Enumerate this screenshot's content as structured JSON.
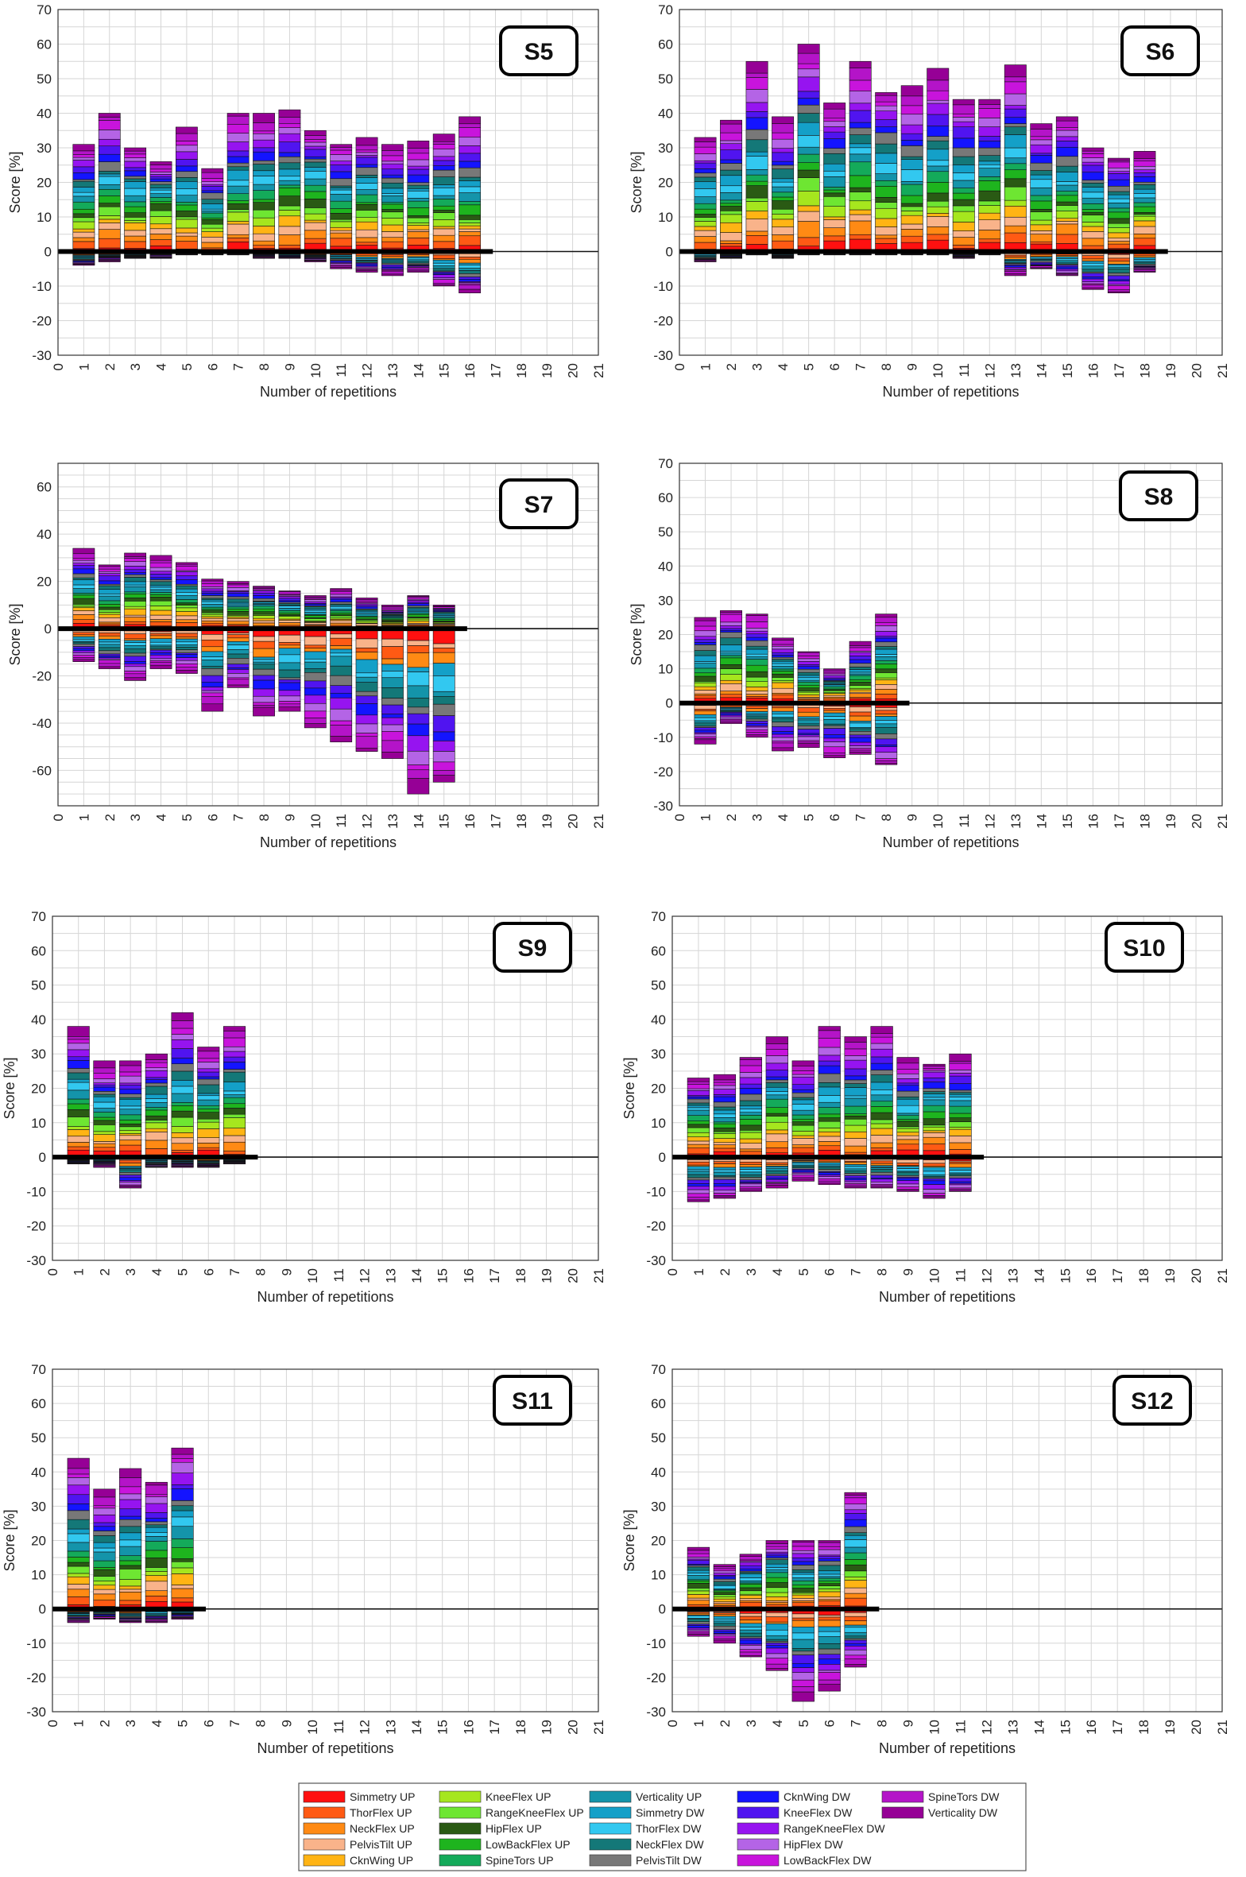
{
  "legend_labels": [
    "Simmetry UP",
    "ThorFlex UP",
    "NeckFlex UP",
    "PelvisTilt UP",
    "CknWing UP",
    "KneeFlex UP",
    "RangeKneeFlex UP",
    "HipFlex UP",
    "LowBackFlex UP",
    "SpineTors UP",
    "Verticality UP",
    "Simmetry DW",
    "ThorFlex DW",
    "NeckFlex DW",
    "PelvisTilt DW",
    "CknWing DW",
    "KneeFlex DW",
    "RangeKneeFlex DW",
    "HipFlex DW",
    "LowBackFlex DW",
    "SpineTors DW",
    "Verticality DW"
  ],
  "legend_colors": [
    "#ff1010",
    "#ff5a14",
    "#ff8a14",
    "#f9b38a",
    "#ffb414",
    "#a6e61e",
    "#6ee632",
    "#2a5a14",
    "#1eb41e",
    "#14aa5a",
    "#1494aa",
    "#14a0c8",
    "#32c8f0",
    "#147878",
    "#787878",
    "#1414ff",
    "#5014f0",
    "#9614f0",
    "#b464e6",
    "#c814dc",
    "#b414c8",
    "#960096"
  ],
  "chart_data": [
    {
      "type": "bar",
      "title": "S5",
      "xlabel": "Number of repetitions",
      "ylabel": "Score [%]",
      "ylim": [
        -30,
        70
      ],
      "xlim": [
        0,
        21
      ],
      "categories": [
        1,
        2,
        3,
        4,
        5,
        6,
        7,
        8,
        9,
        10,
        11,
        12,
        13,
        14,
        15,
        16
      ],
      "pos_totals": [
        31,
        40,
        30,
        26,
        36,
        24,
        40,
        40,
        41,
        35,
        31,
        33,
        31,
        32,
        34,
        39
      ],
      "neg_totals": [
        -4,
        -3,
        -2,
        -2,
        -1,
        -1,
        -1,
        -2,
        -2,
        -3,
        -5,
        -6,
        -7,
        -6,
        -10,
        -12
      ]
    },
    {
      "type": "bar",
      "title": "S6",
      "xlabel": "Number of repetitions",
      "ylabel": "Score [%]",
      "ylim": [
        -30,
        70
      ],
      "xlim": [
        0,
        21
      ],
      "categories": [
        1,
        2,
        3,
        4,
        5,
        6,
        7,
        8,
        9,
        10,
        11,
        12,
        13,
        14,
        15,
        16,
        17,
        18
      ],
      "pos_totals": [
        33,
        38,
        55,
        39,
        60,
        43,
        55,
        46,
        48,
        53,
        44,
        44,
        54,
        37,
        39,
        30,
        27,
        29
      ],
      "neg_totals": [
        -3,
        -2,
        -1,
        -2,
        -1,
        -1,
        -1,
        -1,
        -1,
        -1,
        -2,
        -1,
        -7,
        -5,
        -7,
        -11,
        -12,
        -6
      ]
    },
    {
      "type": "bar",
      "title": "S7",
      "xlabel": "Number of repetitions",
      "ylabel": "Score [%]",
      "ylim": [
        -75,
        70
      ],
      "xlim": [
        0,
        21
      ],
      "categories": [
        1,
        2,
        3,
        4,
        5,
        6,
        7,
        8,
        9,
        10,
        11,
        12,
        13,
        14,
        15
      ],
      "pos_totals": [
        34,
        27,
        32,
        31,
        28,
        21,
        20,
        18,
        16,
        14,
        17,
        13,
        10,
        14,
        10
      ],
      "neg_totals": [
        -14,
        -17,
        -22,
        -17,
        -19,
        -35,
        -25,
        -37,
        -35,
        -42,
        -48,
        -52,
        -55,
        -70,
        -65
      ]
    },
    {
      "type": "bar",
      "title": "S8",
      "xlabel": "Number of repetitions",
      "ylabel": "Score [%]",
      "ylim": [
        -30,
        70
      ],
      "xlim": [
        0,
        21
      ],
      "categories": [
        1,
        2,
        3,
        4,
        5,
        6,
        7,
        8
      ],
      "pos_totals": [
        25,
        27,
        26,
        19,
        15,
        10,
        18,
        26
      ],
      "neg_totals": [
        -12,
        -6,
        -10,
        -14,
        -13,
        -16,
        -15,
        -18
      ]
    },
    {
      "type": "bar",
      "title": "S9",
      "xlabel": "Number of repetitions",
      "ylabel": "Score [%]",
      "ylim": [
        -30,
        70
      ],
      "xlim": [
        0,
        21
      ],
      "categories": [
        1,
        2,
        3,
        4,
        5,
        6,
        7
      ],
      "pos_totals": [
        38,
        28,
        28,
        30,
        42,
        32,
        38
      ],
      "neg_totals": [
        -2,
        -3,
        -9,
        -3,
        -3,
        -3,
        -2
      ]
    },
    {
      "type": "bar",
      "title": "S10",
      "xlabel": "Number of repetitions",
      "ylabel": "Score [%]",
      "ylim": [
        -30,
        70
      ],
      "xlim": [
        0,
        21
      ],
      "categories": [
        1,
        2,
        3,
        4,
        5,
        6,
        7,
        8,
        9,
        10,
        11
      ],
      "pos_totals": [
        23,
        24,
        29,
        35,
        28,
        38,
        35,
        38,
        29,
        27,
        30
      ],
      "neg_totals": [
        -13,
        -12,
        -10,
        -9,
        -7,
        -8,
        -9,
        -9,
        -10,
        -12,
        -10
      ]
    },
    {
      "type": "bar",
      "title": "S11",
      "xlabel": "Number of repetitions",
      "ylabel": "Score [%]",
      "ylim": [
        -30,
        70
      ],
      "xlim": [
        0,
        21
      ],
      "categories": [
        1,
        2,
        3,
        4,
        5
      ],
      "pos_totals": [
        44,
        35,
        41,
        37,
        47
      ],
      "neg_totals": [
        -4,
        -3,
        -4,
        -4,
        -3
      ]
    },
    {
      "type": "bar",
      "title": "S12",
      "xlabel": "Number of repetitions",
      "ylabel": "Score [%]",
      "ylim": [
        -30,
        70
      ],
      "xlim": [
        0,
        21
      ],
      "categories": [
        1,
        2,
        3,
        4,
        5,
        6,
        7
      ],
      "pos_totals": [
        18,
        13,
        16,
        20,
        20,
        20,
        34
      ],
      "neg_totals": [
        -8,
        -10,
        -14,
        -18,
        -27,
        -24,
        -17
      ]
    }
  ]
}
